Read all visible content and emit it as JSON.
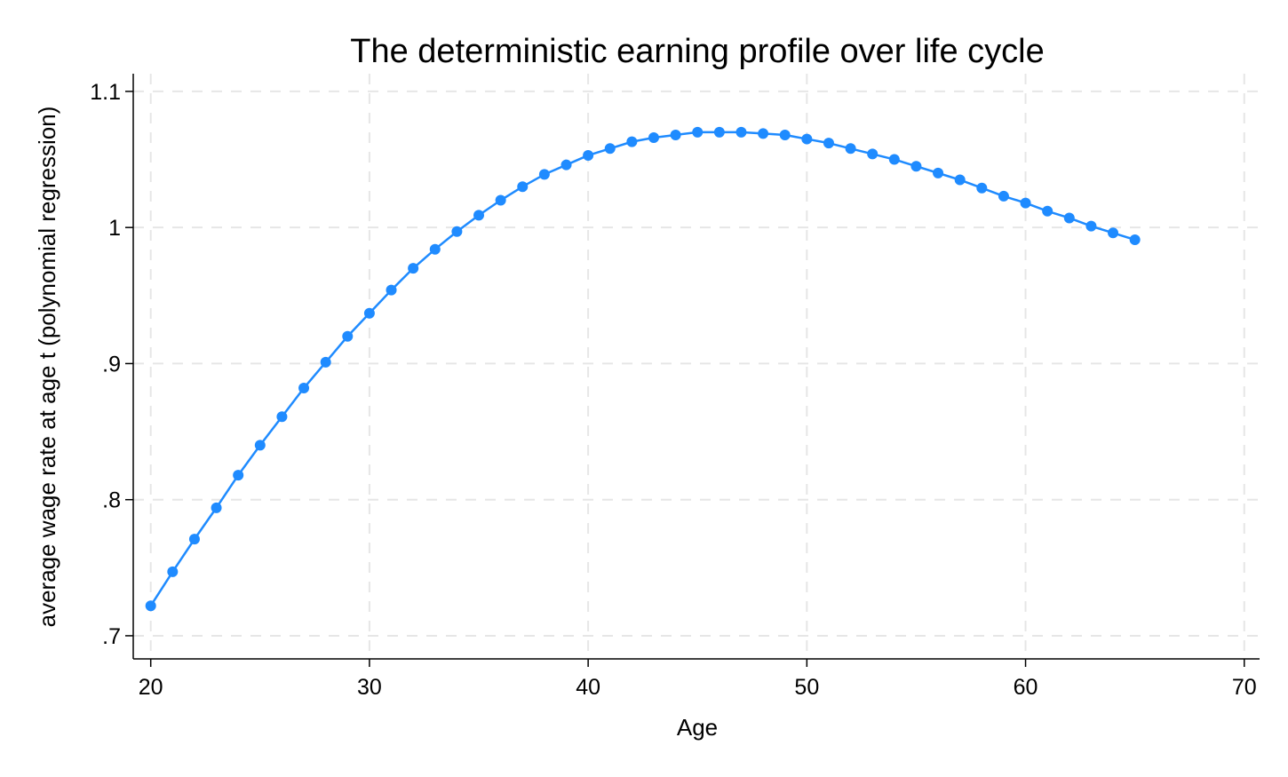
{
  "chart_data": {
    "type": "line",
    "title": "The deterministic earning profile over life cycle",
    "xlabel": "Age",
    "ylabel": "average wage rate at age t (polynomial regression)",
    "xlim": [
      19.2,
      70.7
    ],
    "ylim": [
      0.683,
      1.113
    ],
    "xticks": [
      20,
      30,
      40,
      50,
      60,
      70
    ],
    "xtick_labels": [
      "20",
      "30",
      "40",
      "50",
      "60",
      "70"
    ],
    "yticks": [
      0.7,
      0.8,
      0.9,
      1.0,
      1.1
    ],
    "ytick_labels": [
      ".7",
      ".8",
      ".9",
      "1",
      "1.1"
    ],
    "grid": true,
    "marker": "circle",
    "color": "#1f8bff",
    "series": [
      {
        "x": [
          20,
          21,
          22,
          23,
          24,
          25,
          26,
          27,
          28,
          29,
          30,
          31,
          32,
          33,
          34,
          35,
          36,
          37,
          38,
          39,
          40,
          41,
          42,
          43,
          44,
          45,
          46,
          47,
          48,
          49,
          50,
          51,
          52,
          53,
          54,
          55,
          56,
          57,
          58,
          59,
          60,
          61,
          62,
          63,
          64,
          65
        ],
        "values": [
          0.722,
          0.747,
          0.771,
          0.794,
          0.818,
          0.84,
          0.861,
          0.882,
          0.901,
          0.92,
          0.937,
          0.954,
          0.97,
          0.984,
          0.997,
          1.009,
          1.02,
          1.03,
          1.039,
          1.046,
          1.053,
          1.058,
          1.063,
          1.066,
          1.068,
          1.07,
          1.07,
          1.07,
          1.069,
          1.068,
          1.065,
          1.062,
          1.058,
          1.054,
          1.05,
          1.045,
          1.04,
          1.035,
          1.029,
          1.023,
          1.018,
          1.012,
          1.007,
          1.001,
          0.996,
          0.991
        ]
      }
    ]
  }
}
